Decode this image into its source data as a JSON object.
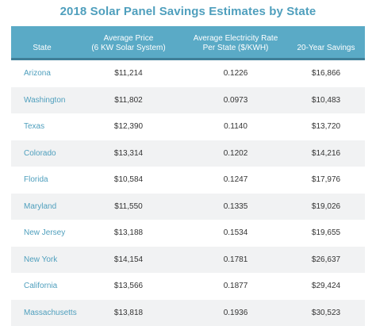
{
  "title": "2018 Solar Panel Savings Estimates by State",
  "headers": {
    "state": "State",
    "price": [
      "Average Price",
      "(6 KW Solar System)"
    ],
    "rate": [
      "Average Electricity Rate",
      "Per State ($/KWH)"
    ],
    "savings": "20-Year Savings"
  },
  "rows": [
    {
      "state": "Arizona",
      "price": "$11,214",
      "rate": "0.1226",
      "savings": "$16,866"
    },
    {
      "state": "Washington",
      "price": "$11,802",
      "rate": "0.0973",
      "savings": "$10,483"
    },
    {
      "state": "Texas",
      "price": "$12,390",
      "rate": "0.1140",
      "savings": "$13,720"
    },
    {
      "state": "Colorado",
      "price": "$13,314",
      "rate": "0.1202",
      "savings": "$14,216"
    },
    {
      "state": "Florida",
      "price": "$10,584",
      "rate": "0.1247",
      "savings": "$17,976"
    },
    {
      "state": "Maryland",
      "price": "$11,550",
      "rate": "0.1335",
      "savings": "$19,026"
    },
    {
      "state": "New Jersey",
      "price": "$13,188",
      "rate": "0.1534",
      "savings": "$19,655"
    },
    {
      "state": "New York",
      "price": "$14,154",
      "rate": "0.1781",
      "savings": "$26,637"
    },
    {
      "state": "California",
      "price": "$13,566",
      "rate": "0.1877",
      "savings": "$29,424"
    },
    {
      "state": "Massachusetts",
      "price": "$13,818",
      "rate": "0.1936",
      "savings": "$30,523"
    }
  ],
  "colors": {
    "accent": "#5aaac6",
    "title": "#4f9fbd",
    "alt_row": "#f1f2f3"
  }
}
